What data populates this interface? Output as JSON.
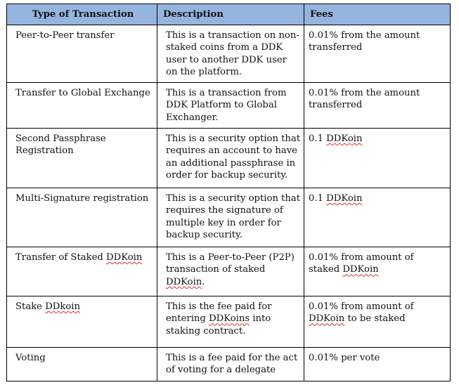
{
  "headers": {
    "type": "Type of Transaction",
    "description": "Description",
    "fees": "Fees"
  },
  "rows": [
    {
      "type": [
        "Peer-to-Peer transfer"
      ],
      "description": [
        "This is a transaction on non-staked coins from a DDK user to another DDK user on the platform."
      ],
      "fees": [
        "0.01% from the amount transferred"
      ]
    },
    {
      "type": [
        "Transfer to Global Exchange"
      ],
      "description": [
        "This is a transaction from DDK Platform to Global Exchanger."
      ],
      "fees": [
        "0.01% from the amount transferred"
      ]
    },
    {
      "type": [
        "Second Passphrase Registration"
      ],
      "description": [
        "This is a security option that requires an account to have an additional passphrase in order for backup security."
      ],
      "fees": [
        "0.1 ",
        "DDKoin"
      ]
    },
    {
      "type": [
        "Multi-Signature registration"
      ],
      "description": [
        "This is a security option that requires the signature of multiple key in order for backup security."
      ],
      "fees": [
        "0.1 ",
        "DDKoin"
      ]
    },
    {
      "type": [
        "Transfer of Staked ",
        "DDKoin"
      ],
      "description": [
        "This is a Peer-to-Peer (P2P) transaction of staked ",
        "DDKoin",
        "."
      ],
      "fees": [
        "0.01% from amount of staked ",
        "DDKoin"
      ]
    },
    {
      "type": [
        "Stake ",
        "DDkoin"
      ],
      "description": [
        "This is the fee paid for entering ",
        "DDKoins",
        " into staking contract."
      ],
      "fees": [
        "0.01% from amount of ",
        "DDKoin",
        " to be staked"
      ]
    },
    {
      "type": [
        "Voting"
      ],
      "description": [
        "This is a fee paid for the act of voting for a delegate"
      ],
      "fees": [
        "0.01% per vote"
      ]
    }
  ],
  "spellcheck_color": "#d9302c",
  "header_color": "#96b4e0"
}
